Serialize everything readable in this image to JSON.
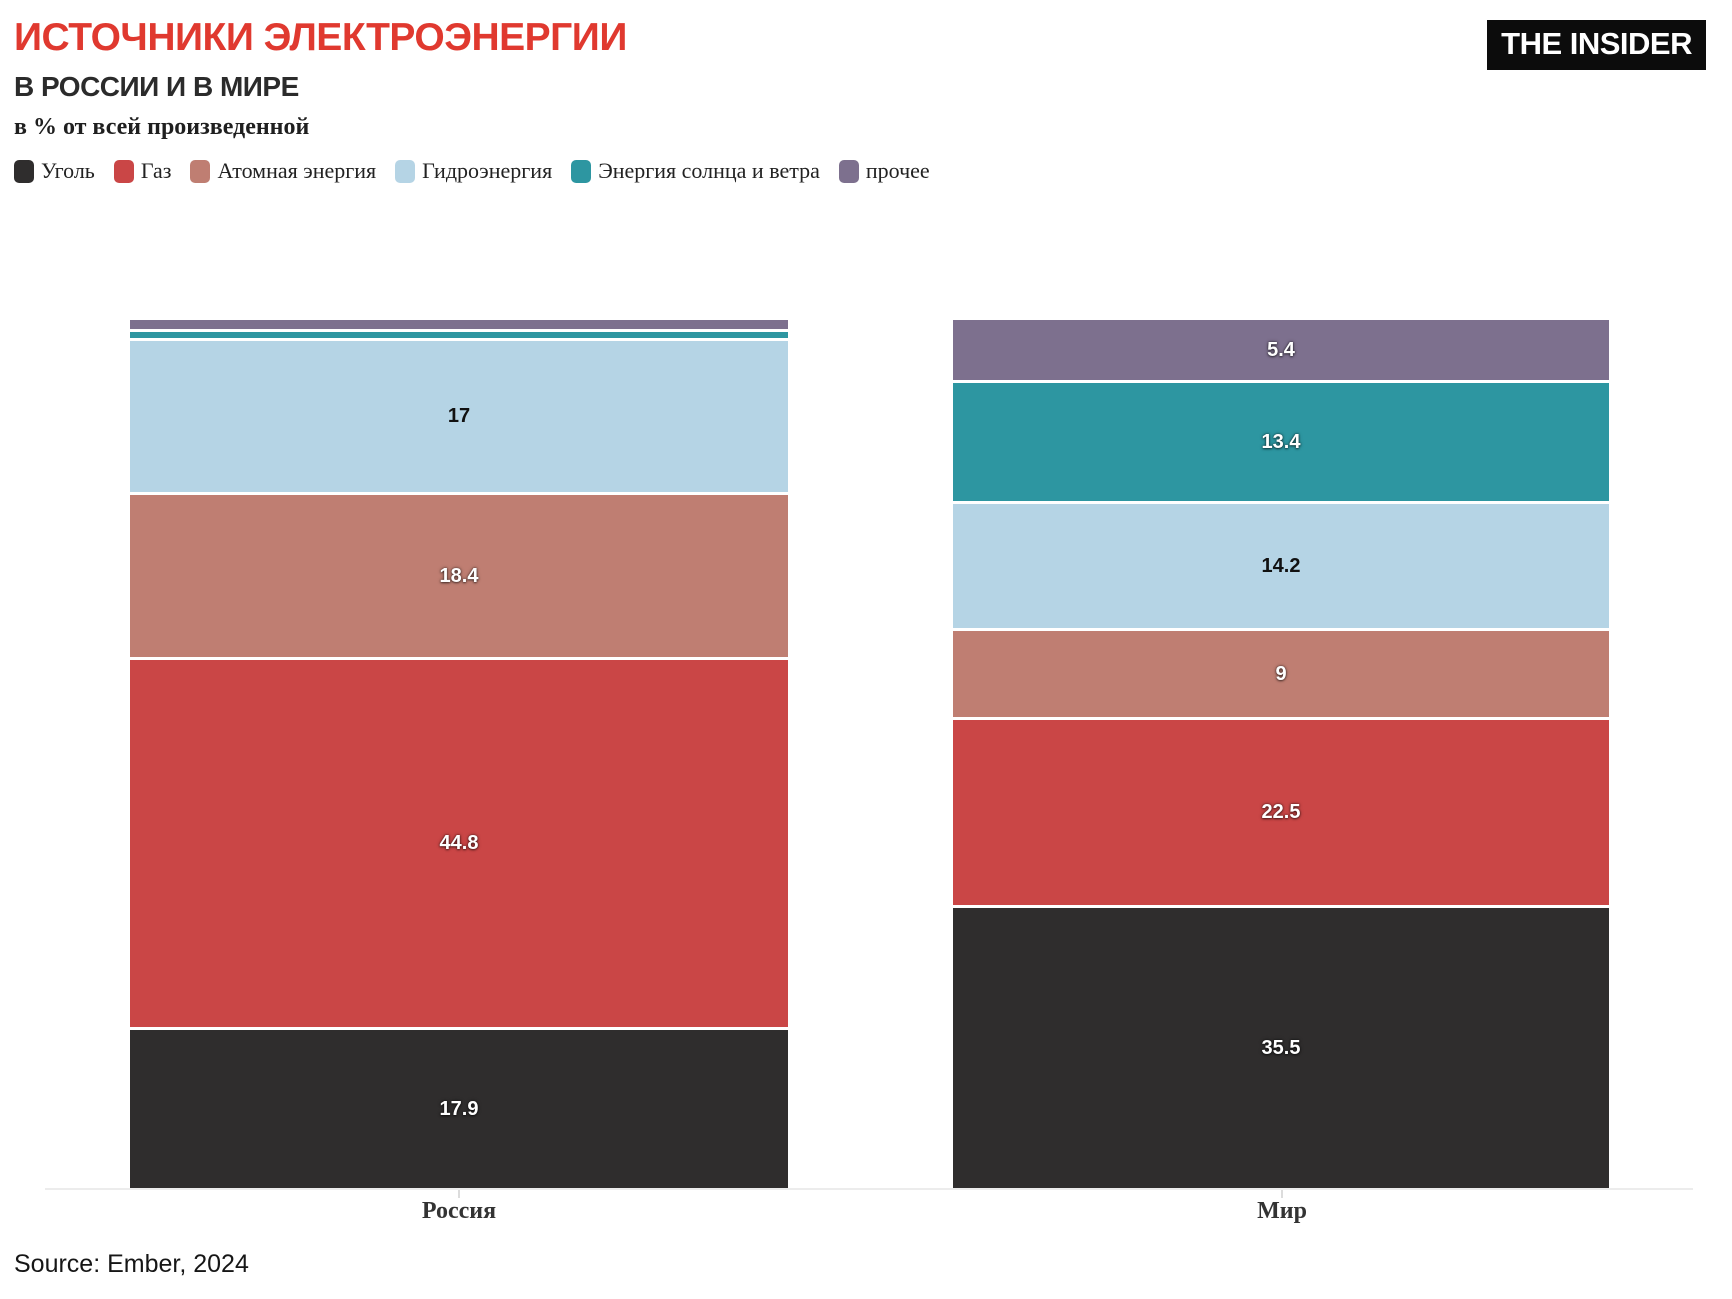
{
  "header": {
    "title": "ИСТОЧНИКИ ЭЛЕКТРОЭНЕРГИИ",
    "subtitle": "В РОССИИ И В МИРЕ",
    "units_note": "в % от всей произведенной",
    "logo_text": "THE INSIDER"
  },
  "footer": {
    "source": "Source: Ember, 2024"
  },
  "colors": {
    "title_accent": "#e0392f",
    "coal": "#2f2d2d",
    "gas": "#ca4646",
    "nuclear": "#bf7e72",
    "hydro": "#b5d4e5",
    "solar_wind": "#2d96a1",
    "other": "#7d708e",
    "axis_line": "#ececec",
    "logo_bg": "#0c0c0c"
  },
  "legend": [
    {
      "key": "coal",
      "label": "Уголь"
    },
    {
      "key": "gas",
      "label": "Газ"
    },
    {
      "key": "nuclear",
      "label": "Атомная энергия"
    },
    {
      "key": "hydro",
      "label": "Гидроэнергия"
    },
    {
      "key": "solar_wind",
      "label": "Энергия солнца и ветра"
    },
    {
      "key": "other",
      "label": "прочее"
    }
  ],
  "chart_data": {
    "type": "bar",
    "subtype": "stacked-percentage-columns",
    "categories": [
      "Россия",
      "Мир"
    ],
    "series": [
      {
        "name": "Уголь",
        "key": "coal",
        "values": [
          17.9,
          35.5
        ],
        "labels": [
          "17.9",
          "35.5"
        ],
        "label_style": "light"
      },
      {
        "name": "Газ",
        "key": "gas",
        "values": [
          44.8,
          22.5
        ],
        "labels": [
          "44.8",
          "22.5"
        ],
        "label_style": "light"
      },
      {
        "name": "Атомная энергия",
        "key": "nuclear",
        "values": [
          18.4,
          9.0
        ],
        "labels": [
          "18.4",
          "9"
        ],
        "label_style": "light"
      },
      {
        "name": "Гидроэнергия",
        "key": "hydro",
        "values": [
          17.0,
          14.2
        ],
        "labels": [
          "17",
          "14.2"
        ],
        "label_style": "dark"
      },
      {
        "name": "Энергия солнца и ветра",
        "key": "solar_wind",
        "values": [
          0.7,
          13.4
        ],
        "labels": [
          null,
          "13.4"
        ],
        "label_style": "light"
      },
      {
        "name": "прочее",
        "key": "other",
        "values": [
          1.2,
          5.4
        ],
        "labels": [
          null,
          "5.4"
        ],
        "label_style": "light"
      }
    ],
    "stack_order_bottom_to_top": [
      "coal",
      "gas",
      "nuclear",
      "hydro",
      "solar_wind",
      "other"
    ],
    "ylim": [
      0,
      100
    ],
    "grid": false,
    "legend_position": "top",
    "value_labels_shown": true
  }
}
